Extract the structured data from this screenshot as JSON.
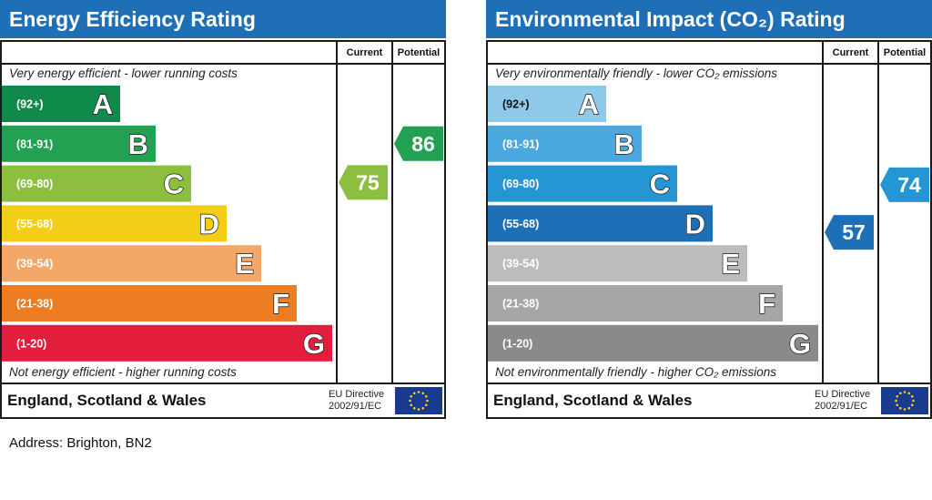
{
  "address": "Address: Brighton, BN2",
  "chart_data": [
    {
      "type": "bar",
      "title": "Energy Efficiency Rating",
      "columns": [
        "Current",
        "Potential"
      ],
      "top_caption": "Very energy efficient - lower running costs",
      "bottom_caption": "Not energy efficient - higher running costs",
      "categories": [
        "A",
        "B",
        "C",
        "D",
        "E",
        "F",
        "G"
      ],
      "ranges": [
        "(92+)",
        "(81-91)",
        "(69-80)",
        "(55-68)",
        "(39-54)",
        "(21-38)",
        "(1-20)"
      ],
      "colors": [
        "#0f8a4b",
        "#21a151",
        "#8cbe3f",
        "#f4cd17",
        "#f3a86a",
        "#ec7d22",
        "#e31d3c"
      ],
      "range_text_colors": [
        "#ffffff",
        "#ffffff",
        "#ffffff",
        "#ffffff",
        "#ffffff",
        "#ffffff",
        "#ffffff"
      ],
      "current": {
        "value": 75,
        "band": "C",
        "color": "#8cbe3f"
      },
      "potential": {
        "value": 86,
        "band": "B",
        "color": "#21a151"
      },
      "footer": "England, Scotland & Wales",
      "directive": [
        "EU Directive",
        "2002/91/EC"
      ]
    },
    {
      "type": "bar",
      "title": "Environmental Impact (CO₂) Rating",
      "columns": [
        "Current",
        "Potential"
      ],
      "top_caption": "Very environmentally friendly - lower CO₂ emissions",
      "bottom_caption": "Not environmentally friendly - higher CO₂ emissions",
      "categories": [
        "A",
        "B",
        "C",
        "D",
        "E",
        "F",
        "G"
      ],
      "ranges": [
        "(92+)",
        "(81-91)",
        "(69-80)",
        "(55-68)",
        "(39-54)",
        "(21-38)",
        "(1-20)"
      ],
      "colors": [
        "#8fc9ea",
        "#4aa8de",
        "#2596d3",
        "#1d6fb6",
        "#bcbcbc",
        "#a6a6a6",
        "#8a8a8a"
      ],
      "range_text_colors": [
        "#111111",
        "#ffffff",
        "#ffffff",
        "#ffffff",
        "#ffffff",
        "#ffffff",
        "#ffffff"
      ],
      "current": {
        "value": 57,
        "band": "D",
        "color": "#1d6fb6"
      },
      "potential": {
        "value": 74,
        "band": "C",
        "color": "#2596d3"
      },
      "footer": "England, Scotland & Wales",
      "directive": [
        "EU Directive",
        "2002/91/EC"
      ]
    }
  ]
}
